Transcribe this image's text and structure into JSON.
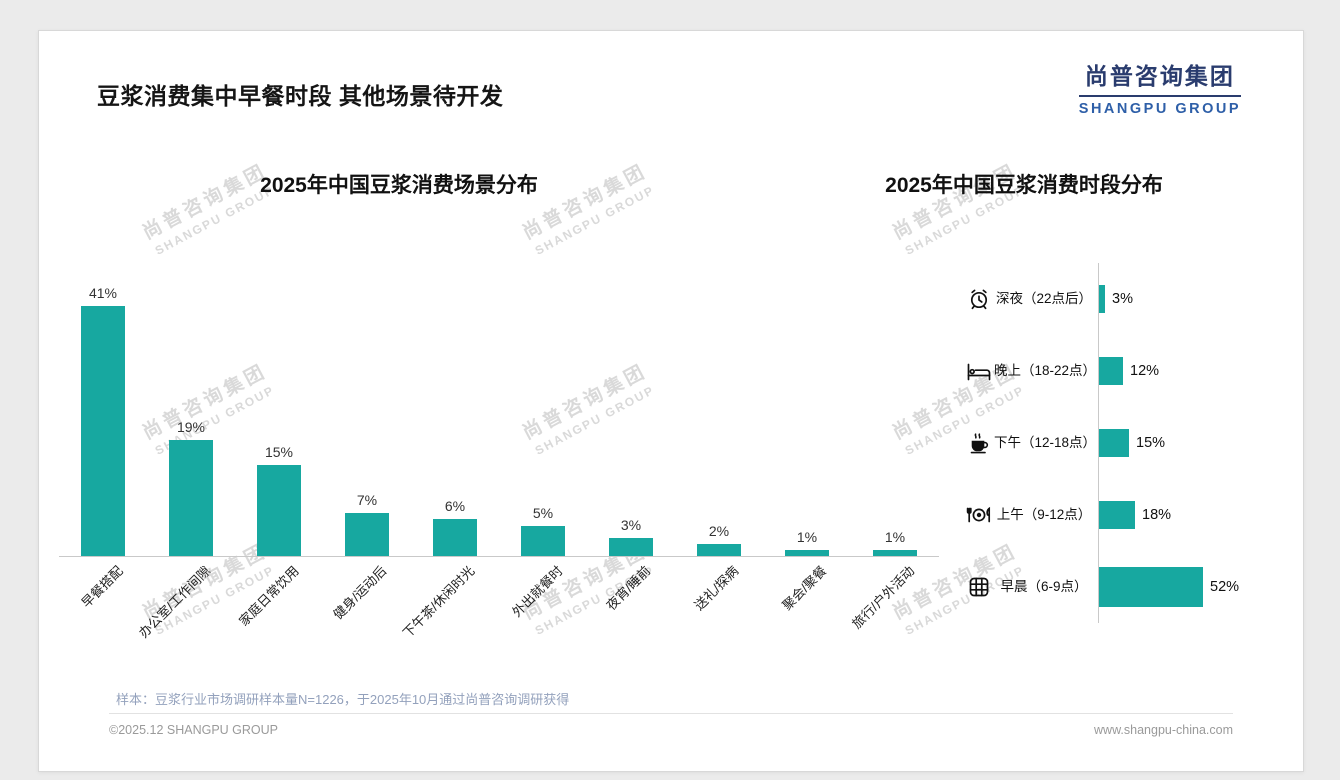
{
  "page": {
    "title": "豆浆消费集中早餐时段 其他场景待开发",
    "logo": {
      "cn": "尚普咨询集团",
      "en": "SHANGPU GROUP"
    },
    "note": "样本：豆浆行业市场调研样本量N=1226，于2025年10月通过尚普咨询调研获得",
    "footer_left": "©2025.12 SHANGPU GROUP",
    "footer_right": "www.shangpu-china.com",
    "watermark": {
      "cn": "尚普咨询集团",
      "en": "SHANGPU GROUP"
    }
  },
  "colors": {
    "accent_teal": "#17A8A0",
    "logo_navy": "#2A3C6E",
    "logo_blue": "#2E5FA8",
    "note_text": "#93A1BC",
    "footer_text": "#9A9A9A"
  },
  "chart_data": [
    {
      "type": "bar",
      "orientation": "vertical",
      "title": "2025年中国豆浆消费场景分布",
      "categories": [
        "早餐搭配",
        "办公室/工作间隙",
        "家庭日常饮用",
        "健身/运动后",
        "下午茶/休闲时光",
        "外出就餐时",
        "夜宵/睡前",
        "送礼/探病",
        "聚会/聚餐",
        "旅行/户外活动"
      ],
      "values": [
        41,
        19,
        15,
        7,
        6,
        5,
        3,
        2,
        1,
        1
      ],
      "unit": "%",
      "value_labels": true,
      "grid": false,
      "ylim": [
        0,
        45
      ],
      "bar_color": "#17A8A0"
    },
    {
      "type": "bar",
      "orientation": "horizontal",
      "title": "2025年中国豆浆消费时段分布",
      "categories": [
        "深夜（22点后）",
        "晚上（18-22点）",
        "下午（12-18点）",
        "上午（9-12点）",
        "早晨（6-9点）"
      ],
      "values": [
        3,
        12,
        15,
        18,
        52
      ],
      "icons": [
        "alarm-clock",
        "bed",
        "coffee",
        "dining",
        "waffle"
      ],
      "unit": "%",
      "value_labels": true,
      "grid": false,
      "xlim": [
        0,
        55
      ],
      "bar_color": "#17A8A0"
    }
  ]
}
